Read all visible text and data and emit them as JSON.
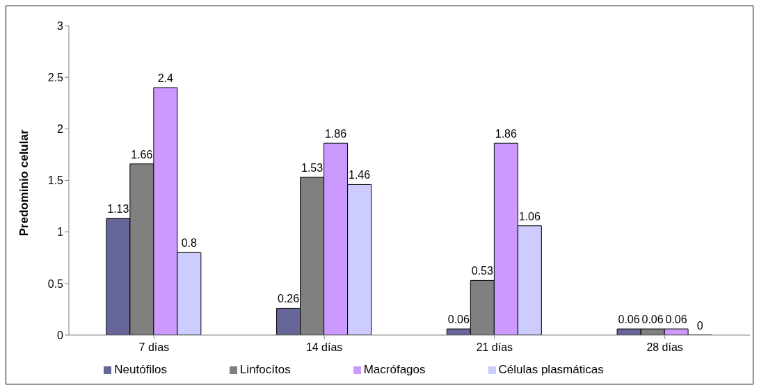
{
  "chart_data": {
    "type": "bar",
    "ylabel": "Predominio celular",
    "categories": [
      "7 días",
      "14 días",
      "21 días",
      "28 días"
    ],
    "series": [
      {
        "name": "Neutófilos",
        "color": "#666699",
        "values": [
          1.13,
          0.26,
          0.06,
          0.06
        ]
      },
      {
        "name": "Linfocítos",
        "color": "#808080",
        "values": [
          1.66,
          1.53,
          0.53,
          0.06
        ]
      },
      {
        "name": "Macrófagos",
        "color": "#cc99ff",
        "values": [
          2.4,
          1.86,
          1.86,
          0.06
        ]
      },
      {
        "name": "Células plasmáticas",
        "color": "#ccccff",
        "values": [
          0.8,
          1.46,
          1.06,
          0
        ]
      }
    ],
    "ylim": [
      0,
      3
    ],
    "yticks": [
      0,
      0.5,
      1,
      1.5,
      2,
      2.5,
      3
    ],
    "grid": false,
    "legend": "bottom",
    "data_labels": true
  }
}
